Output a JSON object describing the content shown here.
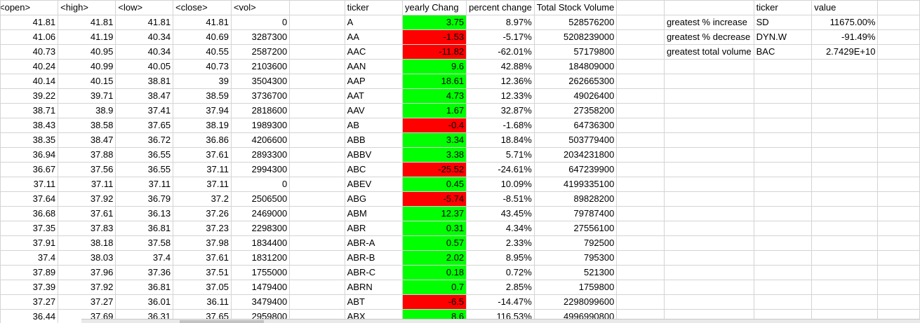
{
  "headers": {
    "open": "<open>",
    "high": "<high>",
    "low": "<low>",
    "close": "<close>",
    "vol": "<vol>",
    "ticker": "ticker",
    "yearly_change": "yearly Chang",
    "percent_change": "percent change",
    "total_volume": "Total Stock Volume",
    "summary_ticker": "ticker",
    "summary_value": "value"
  },
  "rows": [
    {
      "open": "41.81",
      "high": "41.81",
      "low": "41.81",
      "close": "41.81",
      "vol": "0",
      "ticker": "A",
      "yearly_change": "3.75",
      "percent_change": "8.97%",
      "total_volume": "528576200"
    },
    {
      "open": "41.06",
      "high": "41.19",
      "low": "40.34",
      "close": "40.69",
      "vol": "3287300",
      "ticker": "AA",
      "yearly_change": "-1.53",
      "percent_change": "-5.17%",
      "total_volume": "5208239000"
    },
    {
      "open": "40.73",
      "high": "40.95",
      "low": "40.34",
      "close": "40.55",
      "vol": "2587200",
      "ticker": "AAC",
      "yearly_change": "-11.82",
      "percent_change": "-62.01%",
      "total_volume": "57179800"
    },
    {
      "open": "40.24",
      "high": "40.99",
      "low": "40.05",
      "close": "40.73",
      "vol": "2103600",
      "ticker": "AAN",
      "yearly_change": "9.6",
      "percent_change": "42.88%",
      "total_volume": "184809000"
    },
    {
      "open": "40.14",
      "high": "40.15",
      "low": "38.81",
      "close": "39",
      "vol": "3504300",
      "ticker": "AAP",
      "yearly_change": "18.61",
      "percent_change": "12.36%",
      "total_volume": "262665300"
    },
    {
      "open": "39.22",
      "high": "39.71",
      "low": "38.47",
      "close": "38.59",
      "vol": "3736700",
      "ticker": "AAT",
      "yearly_change": "4.73",
      "percent_change": "12.33%",
      "total_volume": "49026400"
    },
    {
      "open": "38.71",
      "high": "38.9",
      "low": "37.41",
      "close": "37.94",
      "vol": "2818600",
      "ticker": "AAV",
      "yearly_change": "1.67",
      "percent_change": "32.87%",
      "total_volume": "27358200"
    },
    {
      "open": "38.43",
      "high": "38.58",
      "low": "37.65",
      "close": "38.19",
      "vol": "1989300",
      "ticker": "AB",
      "yearly_change": "-0.4",
      "percent_change": "-1.68%",
      "total_volume": "64736300"
    },
    {
      "open": "38.35",
      "high": "38.47",
      "low": "36.72",
      "close": "36.86",
      "vol": "4206600",
      "ticker": "ABB",
      "yearly_change": "3.34",
      "percent_change": "18.84%",
      "total_volume": "503779400"
    },
    {
      "open": "36.94",
      "high": "37.88",
      "low": "36.55",
      "close": "37.61",
      "vol": "2893300",
      "ticker": "ABBV",
      "yearly_change": "3.38",
      "percent_change": "5.71%",
      "total_volume": "2034231800"
    },
    {
      "open": "36.67",
      "high": "37.56",
      "low": "36.55",
      "close": "37.11",
      "vol": "2994300",
      "ticker": "ABC",
      "yearly_change": "-25.52",
      "percent_change": "-24.61%",
      "total_volume": "647239900"
    },
    {
      "open": "37.11",
      "high": "37.11",
      "low": "37.11",
      "close": "37.11",
      "vol": "0",
      "ticker": "ABEV",
      "yearly_change": "0.45",
      "percent_change": "10.09%",
      "total_volume": "4199335100"
    },
    {
      "open": "37.64",
      "high": "37.92",
      "low": "36.79",
      "close": "37.2",
      "vol": "2506500",
      "ticker": "ABG",
      "yearly_change": "-5.74",
      "percent_change": "-8.51%",
      "total_volume": "89828200"
    },
    {
      "open": "36.68",
      "high": "37.61",
      "low": "36.13",
      "close": "37.26",
      "vol": "2469000",
      "ticker": "ABM",
      "yearly_change": "12.37",
      "percent_change": "43.45%",
      "total_volume": "79787400"
    },
    {
      "open": "37.35",
      "high": "37.83",
      "low": "36.81",
      "close": "37.23",
      "vol": "2298300",
      "ticker": "ABR",
      "yearly_change": "0.31",
      "percent_change": "4.34%",
      "total_volume": "27556100"
    },
    {
      "open": "37.91",
      "high": "38.18",
      "low": "37.58",
      "close": "37.98",
      "vol": "1834400",
      "ticker": "ABR-A",
      "yearly_change": "0.57",
      "percent_change": "2.33%",
      "total_volume": "792500"
    },
    {
      "open": "37.4",
      "high": "38.03",
      "low": "37.4",
      "close": "37.61",
      "vol": "1831200",
      "ticker": "ABR-B",
      "yearly_change": "2.02",
      "percent_change": "8.95%",
      "total_volume": "795300"
    },
    {
      "open": "37.89",
      "high": "37.96",
      "low": "37.36",
      "close": "37.51",
      "vol": "1755000",
      "ticker": "ABR-C",
      "yearly_change": "0.18",
      "percent_change": "0.72%",
      "total_volume": "521300"
    },
    {
      "open": "37.39",
      "high": "37.92",
      "low": "36.81",
      "close": "37.05",
      "vol": "1479400",
      "ticker": "ABRN",
      "yearly_change": "0.7",
      "percent_change": "2.85%",
      "total_volume": "1759800"
    },
    {
      "open": "37.27",
      "high": "37.27",
      "low": "36.01",
      "close": "36.11",
      "vol": "3479400",
      "ticker": "ABT",
      "yearly_change": "-6.5",
      "percent_change": "-14.47%",
      "total_volume": "2298099600"
    },
    {
      "open": "36.44",
      "high": "37.69",
      "low": "36.31",
      "close": "37.65",
      "vol": "2959800",
      "ticker": "ABX",
      "yearly_change": "8.6",
      "percent_change": "116.53%",
      "total_volume": "4996990800"
    }
  ],
  "summary": [
    {
      "label": "greatest % increase",
      "ticker": "SD",
      "value": "11675.00%"
    },
    {
      "label": "greatest % decrease",
      "ticker": "DYN.W",
      "value": "-91.49%"
    },
    {
      "label": "greatest total volume",
      "ticker": "BAC",
      "value": "2.7429E+10"
    }
  ],
  "colors": {
    "positive_fill": "#00ff00",
    "negative_fill": "#ff0000",
    "gridline": "#d4d4d4"
  }
}
